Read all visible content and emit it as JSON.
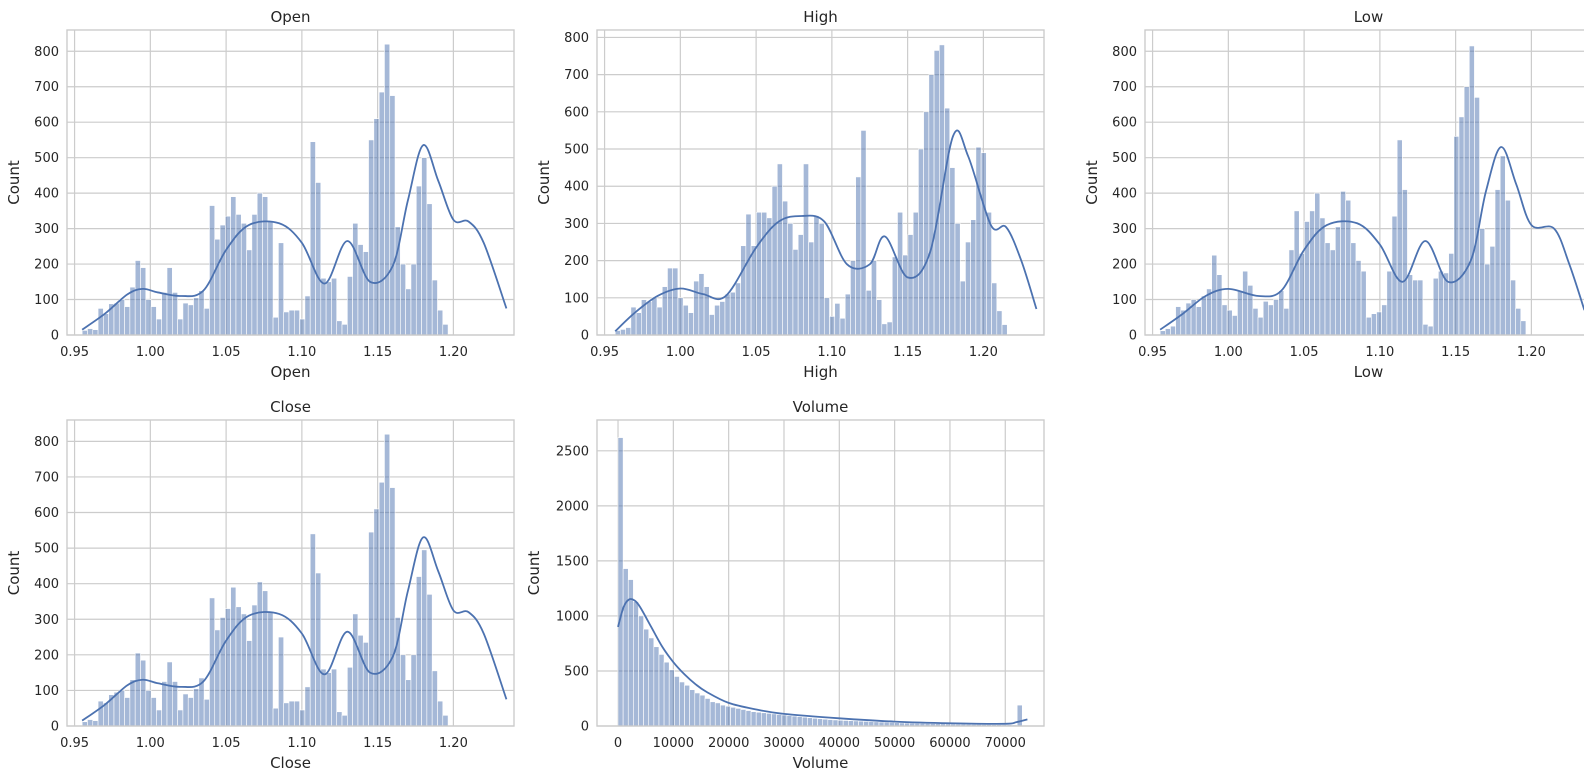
{
  "chart_data": [
    {
      "type": "histogram",
      "title": "Open",
      "xlabel": "Open",
      "ylabel": "Count",
      "bin_start": 0.955,
      "bin_width": 0.0035,
      "counts": [
        13,
        18,
        15,
        75,
        60,
        88,
        90,
        100,
        80,
        135,
        210,
        190,
        100,
        80,
        45,
        120,
        190,
        120,
        45,
        90,
        85,
        105,
        125,
        75,
        365,
        270,
        310,
        335,
        390,
        340,
        315,
        240,
        340,
        400,
        390,
        320,
        50,
        260,
        65,
        70,
        70,
        45,
        110,
        545,
        430,
        160,
        150,
        160,
        40,
        30,
        165,
        315,
        255,
        235,
        550,
        610,
        685,
        820,
        675,
        305,
        200,
        130,
        200,
        420,
        500,
        370,
        155,
        70,
        30
      ],
      "kde_x": [
        0.955,
        0.97,
        0.985,
        0.995,
        1.005,
        1.02,
        1.035,
        1.05,
        1.065,
        1.085,
        1.1,
        1.115,
        1.13,
        1.145,
        1.16,
        1.17,
        1.18,
        1.19,
        1.2,
        1.21,
        1.22,
        1.235
      ],
      "kde_y": [
        15,
        60,
        115,
        130,
        120,
        110,
        125,
        240,
        310,
        315,
        260,
        145,
        265,
        150,
        195,
        380,
        535,
        435,
        325,
        320,
        260,
        75
      ],
      "xlim": [
        0.945,
        1.24
      ],
      "ylim": [
        0,
        860
      ],
      "xticks": [
        0.95,
        1.0,
        1.05,
        1.1,
        1.15,
        1.2
      ],
      "xtick_labels": [
        "0.95",
        "1.00",
        "1.05",
        "1.10",
        "1.15",
        "1.20"
      ],
      "yticks": [
        0,
        100,
        200,
        300,
        400,
        500,
        600,
        700,
        800
      ],
      "grid": true
    },
    {
      "type": "histogram",
      "title": "High",
      "xlabel": "High",
      "ylabel": "Count",
      "bin_start": 0.957,
      "bin_width": 0.00345,
      "counts": [
        12,
        15,
        20,
        75,
        60,
        95,
        90,
        100,
        75,
        130,
        180,
        180,
        100,
        80,
        60,
        145,
        165,
        130,
        55,
        80,
        90,
        110,
        115,
        140,
        240,
        325,
        240,
        330,
        330,
        315,
        400,
        460,
        360,
        300,
        230,
        270,
        460,
        250,
        320,
        300,
        100,
        50,
        85,
        45,
        110,
        200,
        425,
        550,
        120,
        200,
        95,
        30,
        35,
        210,
        330,
        215,
        270,
        330,
        500,
        600,
        700,
        765,
        780,
        610,
        450,
        300,
        145,
        250,
        310,
        505,
        490,
        330,
        140,
        65,
        28
      ],
      "kde_x": [
        0.957,
        0.97,
        0.985,
        1.0,
        1.015,
        1.03,
        1.05,
        1.065,
        1.08,
        1.095,
        1.11,
        1.125,
        1.135,
        1.15,
        1.165,
        1.18,
        1.19,
        1.205,
        1.215,
        1.225,
        1.235
      ],
      "kde_y": [
        10,
        60,
        105,
        125,
        110,
        105,
        235,
        305,
        320,
        305,
        190,
        190,
        265,
        155,
        225,
        535,
        480,
        295,
        290,
        200,
        70
      ],
      "xlim": [
        0.945,
        1.24
      ],
      "ylim": [
        0,
        820
      ],
      "xticks": [
        0.95,
        1.0,
        1.05,
        1.1,
        1.15,
        1.2
      ],
      "xtick_labels": [
        "0.95",
        "1.00",
        "1.05",
        "1.10",
        "1.15",
        "1.20"
      ],
      "yticks": [
        0,
        100,
        200,
        300,
        400,
        500,
        600,
        700,
        800
      ],
      "grid": true
    },
    {
      "type": "histogram",
      "title": "Low",
      "xlabel": "Low",
      "ylabel": "Count",
      "bin_start": 0.955,
      "bin_width": 0.0034,
      "counts": [
        12,
        18,
        25,
        80,
        70,
        90,
        100,
        80,
        110,
        130,
        225,
        170,
        85,
        70,
        55,
        125,
        180,
        140,
        75,
        50,
        95,
        85,
        100,
        125,
        75,
        240,
        350,
        230,
        320,
        350,
        400,
        330,
        260,
        240,
        305,
        405,
        380,
        260,
        210,
        180,
        50,
        60,
        65,
        85,
        180,
        335,
        550,
        410,
        170,
        155,
        155,
        30,
        25,
        160,
        180,
        175,
        230,
        560,
        615,
        700,
        815,
        670,
        300,
        200,
        250,
        410,
        505,
        380,
        155,
        75,
        40
      ],
      "kde_x": [
        0.955,
        0.97,
        0.985,
        1.0,
        1.02,
        1.035,
        1.05,
        1.065,
        1.085,
        1.1,
        1.115,
        1.13,
        1.145,
        1.16,
        1.17,
        1.18,
        1.19,
        1.2,
        1.215,
        1.225,
        1.235
      ],
      "kde_y": [
        15,
        60,
        110,
        130,
        110,
        125,
        240,
        310,
        315,
        255,
        150,
        265,
        150,
        210,
        405,
        530,
        425,
        310,
        300,
        200,
        70
      ],
      "xlim": [
        0.945,
        1.24
      ],
      "ylim": [
        0,
        860
      ],
      "xticks": [
        0.95,
        1.0,
        1.05,
        1.1,
        1.15,
        1.2
      ],
      "xtick_labels": [
        "0.95",
        "1.00",
        "1.05",
        "1.10",
        "1.15",
        "1.20"
      ],
      "yticks": [
        0,
        100,
        200,
        300,
        400,
        500,
        600,
        700,
        800
      ],
      "grid": true
    },
    {
      "type": "histogram",
      "title": "Close",
      "xlabel": "Close",
      "ylabel": "Count",
      "bin_start": 0.955,
      "bin_width": 0.0035,
      "counts": [
        12,
        18,
        15,
        70,
        65,
        88,
        95,
        100,
        80,
        130,
        205,
        185,
        100,
        80,
        45,
        125,
        180,
        125,
        45,
        90,
        80,
        105,
        135,
        75,
        360,
        270,
        305,
        330,
        390,
        335,
        315,
        240,
        340,
        405,
        380,
        320,
        50,
        250,
        65,
        70,
        70,
        45,
        110,
        540,
        430,
        160,
        150,
        160,
        40,
        30,
        165,
        315,
        255,
        235,
        545,
        610,
        685,
        820,
        670,
        305,
        200,
        130,
        200,
        420,
        495,
        370,
        155,
        70,
        30
      ],
      "kde_x": [
        0.955,
        0.97,
        0.985,
        0.995,
        1.005,
        1.02,
        1.035,
        1.05,
        1.065,
        1.085,
        1.1,
        1.115,
        1.13,
        1.145,
        1.16,
        1.17,
        1.18,
        1.19,
        1.2,
        1.21,
        1.22,
        1.235
      ],
      "kde_y": [
        15,
        60,
        115,
        130,
        120,
        110,
        125,
        240,
        310,
        315,
        260,
        145,
        265,
        150,
        195,
        380,
        530,
        435,
        325,
        320,
        260,
        75
      ],
      "xlim": [
        0.945,
        1.24
      ],
      "ylim": [
        0,
        860
      ],
      "xticks": [
        0.95,
        1.0,
        1.05,
        1.1,
        1.15,
        1.2
      ],
      "xtick_labels": [
        "0.95",
        "1.00",
        "1.05",
        "1.10",
        "1.15",
        "1.20"
      ],
      "yticks": [
        0,
        100,
        200,
        300,
        400,
        500,
        600,
        700,
        800
      ],
      "grid": true
    },
    {
      "type": "histogram",
      "title": "Volume",
      "xlabel": "Volume",
      "ylabel": "Count",
      "bin_start": 0,
      "bin_width": 925,
      "counts": [
        2620,
        1430,
        1330,
        1130,
        1000,
        880,
        800,
        720,
        650,
        580,
        510,
        450,
        400,
        370,
        330,
        300,
        280,
        250,
        220,
        210,
        190,
        180,
        170,
        160,
        150,
        140,
        130,
        125,
        120,
        115,
        110,
        105,
        100,
        95,
        90,
        85,
        80,
        75,
        70,
        66,
        62,
        58,
        55,
        52,
        50,
        48,
        46,
        44,
        42,
        40,
        38,
        36,
        34,
        32,
        30,
        28,
        27,
        26,
        25,
        24,
        23,
        22,
        21,
        20,
        19,
        18,
        17,
        16,
        15,
        14,
        14,
        13,
        13,
        12,
        12,
        11,
        11,
        10,
        190
      ],
      "kde_x": [
        0,
        1000,
        2000,
        3000,
        4000,
        6000,
        8000,
        10000,
        12000,
        14000,
        16000,
        20000,
        25000,
        30000,
        40000,
        50000,
        60000,
        70000,
        72000,
        74000
      ],
      "kde_y": [
        900,
        1080,
        1150,
        1140,
        1080,
        900,
        720,
        580,
        470,
        380,
        310,
        210,
        150,
        110,
        70,
        40,
        25,
        20,
        35,
        60
      ],
      "xlim": [
        -3800,
        77000
      ],
      "ylim": [
        0,
        2780
      ],
      "xticks": [
        0,
        10000,
        20000,
        30000,
        40000,
        50000,
        60000,
        70000
      ],
      "xtick_labels": [
        "0",
        "10000",
        "20000",
        "30000",
        "40000",
        "50000",
        "60000",
        "70000"
      ],
      "yticks": [
        0,
        500,
        1000,
        1500,
        2000,
        2500
      ],
      "grid": true
    }
  ]
}
